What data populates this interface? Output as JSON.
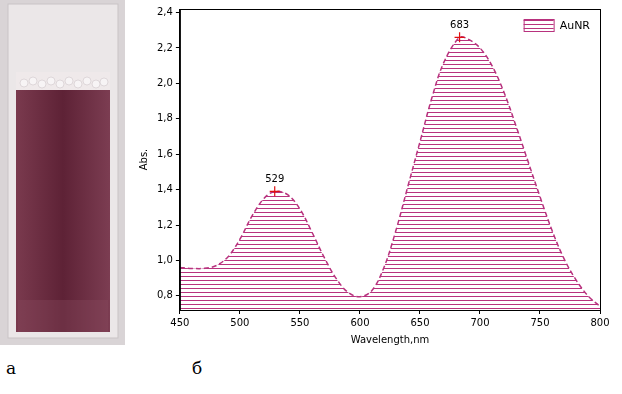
{
  "panel_labels": [
    "а",
    "б"
  ],
  "chart_data": {
    "type": "area",
    "x_label": "Wavelength,nm",
    "y_label": "Abs.",
    "x": [
      450,
      460,
      470,
      480,
      490,
      500,
      510,
      520,
      529,
      540,
      550,
      560,
      570,
      580,
      590,
      600,
      610,
      620,
      630,
      640,
      650,
      660,
      670,
      683,
      690,
      700,
      710,
      720,
      730,
      740,
      750,
      760,
      770,
      780,
      790,
      800
    ],
    "series": [
      {
        "name": "AuNR",
        "color": "#b8327e",
        "line_style": "dashed",
        "values": [
          0.96,
          0.955,
          0.955,
          0.97,
          1.02,
          1.12,
          1.25,
          1.35,
          1.39,
          1.37,
          1.29,
          1.16,
          1.02,
          0.9,
          0.82,
          0.795,
          0.83,
          0.96,
          1.17,
          1.42,
          1.67,
          1.92,
          2.12,
          2.26,
          2.25,
          2.2,
          2.1,
          1.95,
          1.76,
          1.56,
          1.36,
          1.17,
          1.01,
          0.89,
          0.8,
          0.74
        ]
      }
    ],
    "xlim": [
      450,
      800
    ],
    "xticks": [
      450,
      500,
      550,
      600,
      650,
      700,
      750,
      800
    ],
    "ylim": [
      0.72,
      2.42
    ],
    "yticks": [
      {
        "value": 0.8,
        "label": "0,8"
      },
      {
        "value": 1.0,
        "label": "1,0"
      },
      {
        "value": 1.2,
        "label": "1,2"
      },
      {
        "value": 1.4,
        "label": "1,4"
      },
      {
        "value": 1.6,
        "label": "1,6"
      },
      {
        "value": 1.8,
        "label": "1,8"
      },
      {
        "value": 2.0,
        "label": "2,0"
      },
      {
        "value": 2.2,
        "label": "2,2"
      },
      {
        "value": 2.4,
        "label": "2,4"
      }
    ],
    "grid": false,
    "legend": "upper right",
    "annotations": [
      {
        "x": 529,
        "y": 1.39,
        "label": "529"
      },
      {
        "x": 683,
        "y": 2.26,
        "label": "683"
      }
    ]
  }
}
